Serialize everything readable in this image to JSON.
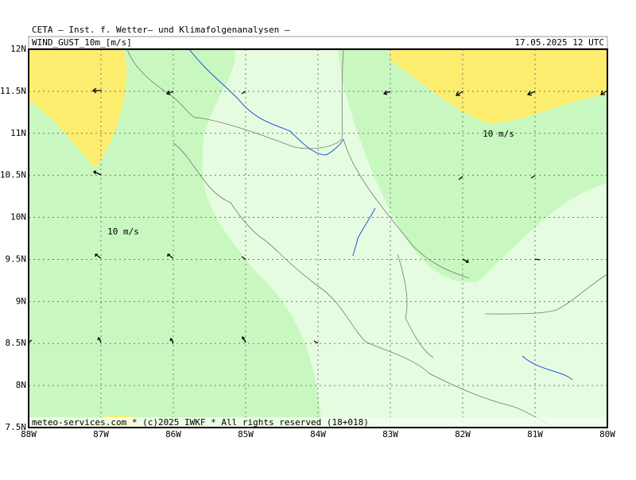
{
  "header": {
    "institute": "CETA — Inst. f. Wetter— und Klimafolgenanalysen —",
    "field": "WIND_GUST_10m_[m/s]",
    "valid_time": "17.05.2025 12 UTC"
  },
  "latitude_labels": [
    "12N",
    "11.5N",
    "11N",
    "10.5N",
    "10N",
    "9.5N",
    "9N",
    "8.5N",
    "8N",
    "7.5N"
  ],
  "longitude_labels": [
    "88W",
    "87W",
    "86W",
    "85W",
    "84W",
    "83W",
    "82W",
    "81W",
    "80W"
  ],
  "contour_labels": [
    "10 m/s",
    "10 m/s"
  ],
  "footer": "meteo-services.com * (c)2025 IWKF * All rights reserved (18+018)"
}
